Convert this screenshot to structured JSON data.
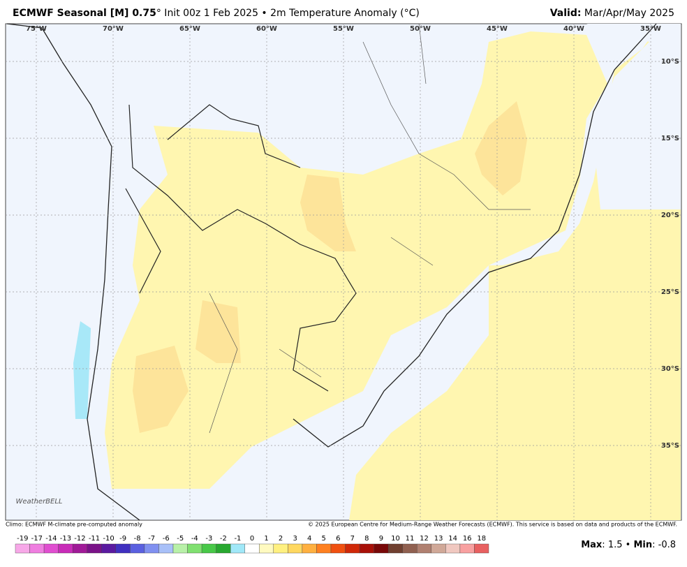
{
  "header": {
    "title_bold": "ECMWF Seasonal [M] 0.75",
    "title_rest": "° Init 00z 1 Feb 2025 • 2m Temperature Anomaly (°C)",
    "valid_label": "Valid:",
    "valid_value": "Mar/Apr/May 2025"
  },
  "map": {
    "lon_labels": [
      "75°W",
      "70°W",
      "65°W",
      "60°W",
      "55°W",
      "50°W",
      "45°W",
      "40°W",
      "35°W"
    ],
    "lat_labels": [
      "10°S",
      "15°S",
      "20°S",
      "25°S",
      "30°S",
      "35°S"
    ],
    "logo": "WeatherBELL"
  },
  "footer": {
    "climo": "Climo: ECMWF M-climate pre-computed anomaly",
    "copyright": "© 2025 European Centre for Medium-Range Weather Forecasts (ECMWF). This service is based on data and products of the ECMWF."
  },
  "colorbar": {
    "labels": [
      "-19",
      "-17",
      "-14",
      "-13",
      "-12",
      "-11",
      "-10",
      "-9",
      "-8",
      "-7",
      "-6",
      "-5",
      "-4",
      "-3",
      "-2",
      "-1",
      "0",
      "1",
      "2",
      "3",
      "4",
      "5",
      "6",
      "7",
      "8",
      "9",
      "10",
      "11",
      "12",
      "13",
      "14",
      "16",
      "18"
    ],
    "colors": [
      "#f7a8e8",
      "#ef7ee0",
      "#e04ed0",
      "#c82cb8",
      "#a01a98",
      "#7a1288",
      "#5a1aa0",
      "#4030c0",
      "#5a60e0",
      "#8090f0",
      "#a8c0f8",
      "#b8f0a8",
      "#80e070",
      "#48c848",
      "#28a830",
      "#a0e8f8",
      "#ffffff",
      "#fffac0",
      "#fff080",
      "#ffd860",
      "#ffb040",
      "#ff8020",
      "#f05010",
      "#d02808",
      "#a81008",
      "#780808",
      "#704030",
      "#906050",
      "#b08070",
      "#d0a898",
      "#f0c8c0",
      "#f8a0a0",
      "#e86060"
    ]
  },
  "stats": {
    "max_label": "Max",
    "max": 1.5,
    "sep": "•",
    "min_label": "Min",
    "min": -0.8
  }
}
